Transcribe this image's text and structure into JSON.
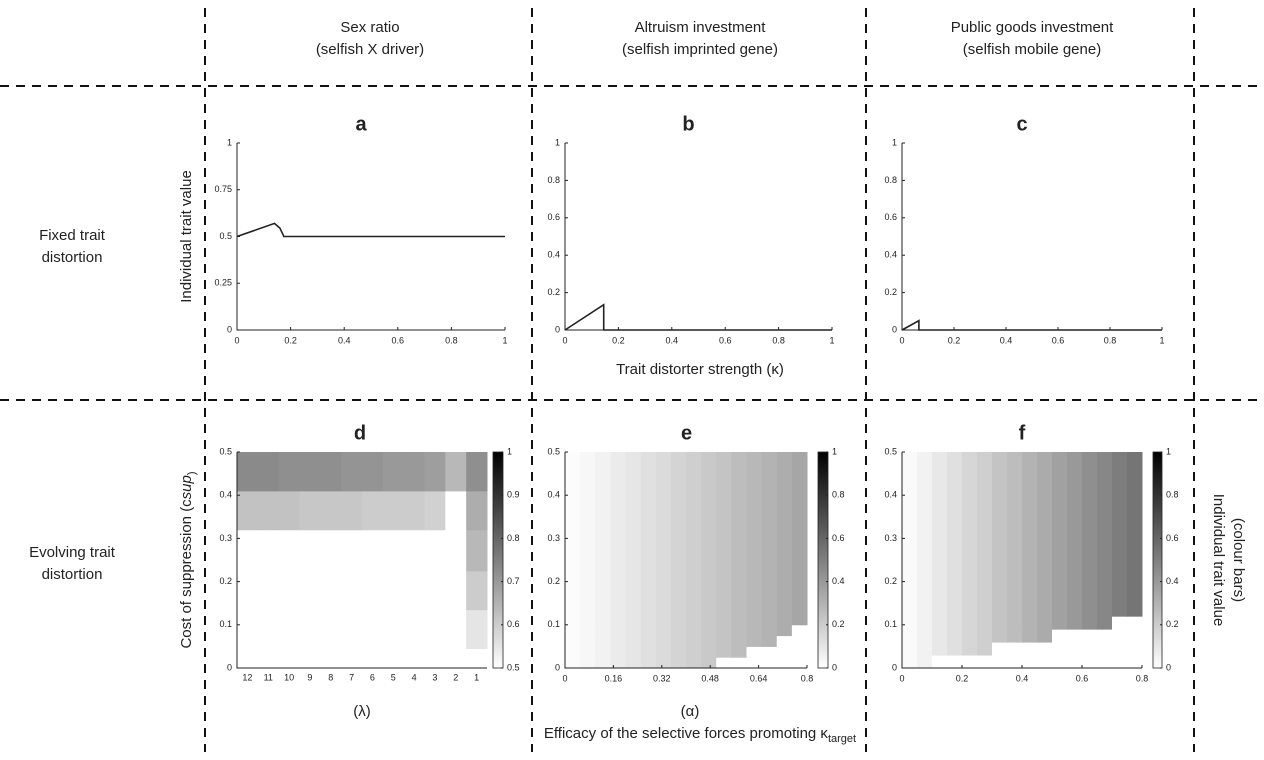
{
  "headers": [
    {
      "title": "Sex ratio",
      "subtitle": "(selfish X driver)"
    },
    {
      "title": "Altruism investment",
      "subtitle": "(selfish imprinted gene)"
    },
    {
      "title": "Public goods investment",
      "subtitle": "(selfish mobile gene)"
    }
  ],
  "rows": [
    [
      "Fixed trait",
      "distortion"
    ],
    [
      "Evolving trait",
      "distortion"
    ]
  ],
  "top_xlabel": "Trait distorter strength (κ)",
  "bottom_xlabel": [
    "Efficacy of the selective forces promoting κ",
    "target"
  ],
  "right_label": [
    "Individual trait value",
    "(colour bars)"
  ],
  "chart_data": [
    {
      "type": "line",
      "panel": "a",
      "ylabel": "Individual trait value",
      "x": [
        0,
        0.14,
        0.16,
        0.175,
        1
      ],
      "values": [
        0.5,
        0.57,
        0.545,
        0.5,
        0.5
      ],
      "color": "#222222",
      "xlim": [
        0,
        1
      ],
      "ylim": [
        0,
        1
      ],
      "xticks": [
        0,
        0.2,
        0.4,
        0.6,
        0.8,
        1
      ],
      "yticks": [
        0,
        0.25,
        0.5,
        0.75,
        1
      ]
    },
    {
      "type": "line",
      "panel": "b",
      "x": [
        0,
        0.145,
        0.145,
        1
      ],
      "values": [
        0,
        0.135,
        0,
        0
      ],
      "color": "#222222",
      "xlim": [
        0,
        1
      ],
      "ylim": [
        0,
        1
      ],
      "xticks": [
        0,
        0.2,
        0.4,
        0.6,
        0.8,
        1
      ],
      "yticks": [
        0,
        0.2,
        0.4,
        0.6,
        0.8,
        1
      ]
    },
    {
      "type": "line",
      "panel": "c",
      "x": [
        0,
        0.065,
        0.065,
        1
      ],
      "values": [
        0,
        0.05,
        0,
        0
      ],
      "color": "#222222",
      "xlim": [
        0,
        1
      ],
      "ylim": [
        0,
        1
      ],
      "xticks": [
        0,
        0.2,
        0.4,
        0.6,
        0.8,
        1
      ],
      "yticks": [
        0,
        0.2,
        0.4,
        0.6,
        0.8,
        1
      ]
    },
    {
      "type": "heatmap",
      "panel": "d",
      "ylabel": [
        "Cost of suppression (c",
        "sup",
        ")"
      ],
      "xlabel": "(λ)",
      "categories": [
        "12",
        "11",
        "10",
        "9",
        "8",
        "7",
        "6",
        "5",
        "4",
        "3",
        "2",
        "1"
      ],
      "ybins": [
        0,
        0.045,
        0.135,
        0.225,
        0.32,
        0.41,
        0.5
      ],
      "values": [
        [
          0.5,
          0.5,
          0.5,
          0.5,
          0.5,
          0.5,
          0.5,
          0.5,
          0.5,
          0.5,
          0.5,
          0.5
        ],
        [
          0.5,
          0.5,
          0.5,
          0.5,
          0.5,
          0.5,
          0.5,
          0.5,
          0.5,
          0.5,
          0.5,
          0.55
        ],
        [
          0.5,
          0.5,
          0.5,
          0.5,
          0.5,
          0.5,
          0.5,
          0.5,
          0.5,
          0.5,
          0.5,
          0.6
        ],
        [
          0.5,
          0.5,
          0.5,
          0.5,
          0.5,
          0.5,
          0.5,
          0.5,
          0.5,
          0.5,
          0.5,
          0.64
        ],
        [
          0.62,
          0.62,
          0.62,
          0.61,
          0.61,
          0.61,
          0.6,
          0.6,
          0.6,
          0.59,
          0.5,
          0.66
        ],
        [
          0.73,
          0.73,
          0.72,
          0.72,
          0.72,
          0.71,
          0.71,
          0.7,
          0.7,
          0.69,
          0.64,
          0.72
        ]
      ],
      "ylim": [
        0,
        0.5
      ],
      "yticks": [
        0,
        0.1,
        0.2,
        0.3,
        0.4,
        0.5
      ],
      "clim": [
        0.5,
        1
      ],
      "cticks": [
        0.5,
        0.6,
        0.7,
        0.8,
        0.9,
        1
      ]
    },
    {
      "type": "heatmap",
      "panel": "e",
      "xlabel": "(α)",
      "xbins": [
        0,
        0.05,
        0.1,
        0.15,
        0.2,
        0.25,
        0.3,
        0.35,
        0.4,
        0.45,
        0.5,
        0.55,
        0.6,
        0.65,
        0.7,
        0.75,
        0.8
      ],
      "ybins": [
        0,
        0.025,
        0.05,
        0.075,
        0.1,
        0.5
      ],
      "values": [
        [
          0.01,
          0.03,
          0.05,
          0.08,
          0.1,
          0.12,
          0.14,
          0.17,
          0.19,
          0.21,
          0,
          0,
          0,
          0,
          0,
          0
        ],
        [
          0.01,
          0.03,
          0.05,
          0.08,
          0.1,
          0.12,
          0.14,
          0.17,
          0.19,
          0.21,
          0.23,
          0.26,
          0,
          0,
          0,
          0
        ],
        [
          0.01,
          0.03,
          0.05,
          0.08,
          0.1,
          0.12,
          0.14,
          0.17,
          0.19,
          0.21,
          0.23,
          0.26,
          0.28,
          0.3,
          0,
          0
        ],
        [
          0.01,
          0.03,
          0.05,
          0.08,
          0.1,
          0.12,
          0.14,
          0.17,
          0.19,
          0.21,
          0.23,
          0.26,
          0.28,
          0.3,
          0.32,
          0
        ],
        [
          0.01,
          0.03,
          0.05,
          0.08,
          0.1,
          0.12,
          0.14,
          0.17,
          0.19,
          0.21,
          0.23,
          0.26,
          0.28,
          0.3,
          0.32,
          0.35
        ]
      ],
      "xlim": [
        0,
        0.8
      ],
      "ylim": [
        0,
        0.5
      ],
      "xticks": [
        0,
        0.16,
        0.32,
        0.48,
        0.64,
        0.8
      ],
      "yticks": [
        0,
        0.1,
        0.2,
        0.3,
        0.4,
        0.5
      ],
      "clim": [
        0,
        1
      ],
      "cticks": [
        0,
        0.2,
        0.4,
        0.6,
        0.8,
        1
      ]
    },
    {
      "type": "heatmap",
      "panel": "f",
      "xbins": [
        0,
        0.05,
        0.1,
        0.15,
        0.2,
        0.25,
        0.3,
        0.35,
        0.4,
        0.45,
        0.5,
        0.55,
        0.6,
        0.65,
        0.7,
        0.75,
        0.8
      ],
      "ybins": [
        0,
        0.03,
        0.06,
        0.09,
        0.12,
        0.5
      ],
      "values": [
        [
          0.02,
          0.05,
          0,
          0,
          0,
          0,
          0,
          0,
          0,
          0,
          0,
          0,
          0,
          0,
          0,
          0
        ],
        [
          0.02,
          0.05,
          0.09,
          0.12,
          0.16,
          0.19,
          0,
          0,
          0,
          0,
          0,
          0,
          0,
          0,
          0,
          0
        ],
        [
          0.02,
          0.05,
          0.09,
          0.12,
          0.16,
          0.19,
          0.23,
          0.26,
          0.3,
          0.33,
          0,
          0,
          0,
          0,
          0,
          0
        ],
        [
          0.02,
          0.05,
          0.09,
          0.12,
          0.16,
          0.19,
          0.23,
          0.26,
          0.3,
          0.33,
          0.37,
          0.4,
          0.44,
          0.47,
          0,
          0
        ],
        [
          0.02,
          0.05,
          0.09,
          0.12,
          0.16,
          0.19,
          0.23,
          0.26,
          0.3,
          0.33,
          0.37,
          0.4,
          0.44,
          0.47,
          0.51,
          0.54
        ]
      ],
      "xlim": [
        0,
        0.8
      ],
      "ylim": [
        0,
        0.5
      ],
      "xticks": [
        0,
        0.2,
        0.4,
        0.6,
        0.8
      ],
      "yticks": [
        0,
        0.1,
        0.2,
        0.3,
        0.4,
        0.5
      ],
      "clim": [
        0,
        1
      ],
      "cticks": [
        0,
        0.2,
        0.4,
        0.6,
        0.8,
        1
      ]
    }
  ]
}
